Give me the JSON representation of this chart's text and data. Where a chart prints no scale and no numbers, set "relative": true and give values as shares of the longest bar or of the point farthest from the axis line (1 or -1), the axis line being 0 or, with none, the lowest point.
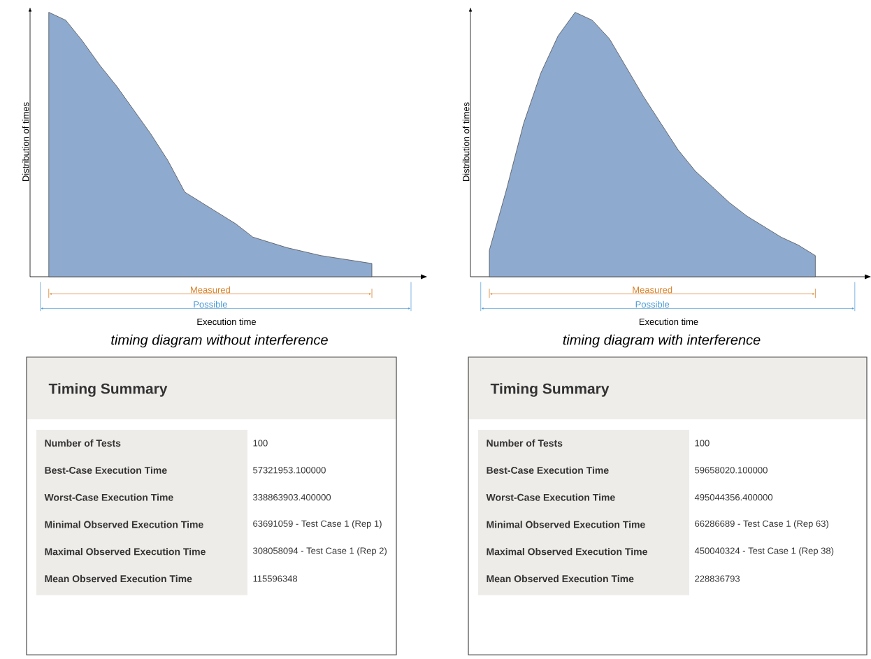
{
  "chart_data": [
    {
      "type": "area",
      "relative": true,
      "title": "timing diagram without interference",
      "xlabel": "Execution time",
      "ylabel": "Distribution of times",
      "color": "#8eaacf",
      "categories": [
        null,
        null,
        null,
        null,
        null,
        null,
        null,
        null,
        null,
        null,
        null,
        null,
        null,
        null,
        null,
        null,
        null,
        null,
        null,
        null
      ],
      "values": [
        1.0,
        0.97,
        0.89,
        0.8,
        0.72,
        0.63,
        0.54,
        0.44,
        0.32,
        0.28,
        0.24,
        0.2,
        0.15,
        0.13,
        0.11,
        0.095,
        0.08,
        0.07,
        0.06,
        0.05
      ],
      "annotations": [
        "Measured",
        "Possible"
      ]
    },
    {
      "type": "area",
      "relative": true,
      "title": "timing diagram with interference",
      "xlabel": "Execution time",
      "ylabel": "Distribution of times",
      "color": "#8eaacf",
      "categories": [
        null,
        null,
        null,
        null,
        null,
        null,
        null,
        null,
        null,
        null,
        null,
        null,
        null,
        null,
        null,
        null,
        null,
        null,
        null,
        null
      ],
      "values": [
        0.1,
        0.33,
        0.58,
        0.77,
        0.91,
        1.0,
        0.97,
        0.9,
        0.79,
        0.68,
        0.58,
        0.48,
        0.4,
        0.34,
        0.28,
        0.23,
        0.19,
        0.15,
        0.12,
        0.08
      ],
      "annotations": [
        "Measured",
        "Possible"
      ]
    },
    {
      "type": "other",
      "title": "Timing Summary",
      "annotations": [
        "Number of Tests",
        "100",
        "Best-Case Execution Time",
        "57321953.100000",
        "Worst-Case Execution Time",
        "338863903.400000",
        "Minimal Observed Execution Time",
        "63691059 - Test Case 1 (Rep 1)",
        "Maximal Observed Execution Time",
        "308058094 - Test Case 1 (Rep 2)",
        "Mean Observed Execution Time",
        "115596348"
      ]
    },
    {
      "type": "other",
      "title": "Timing Summary",
      "annotations": [
        "Number of Tests",
        "100",
        "Best-Case Execution Time",
        "59658020.100000",
        "Worst-Case Execution Time",
        "495044356.400000",
        "Minimal Observed Execution Time",
        "66286689 - Test Case 1 (Rep 63)",
        "Maximal Observed Execution Time",
        "450040324 - Test Case 1 (Rep 38)",
        "Mean Observed Execution Time",
        "228836793"
      ]
    }
  ]
}
